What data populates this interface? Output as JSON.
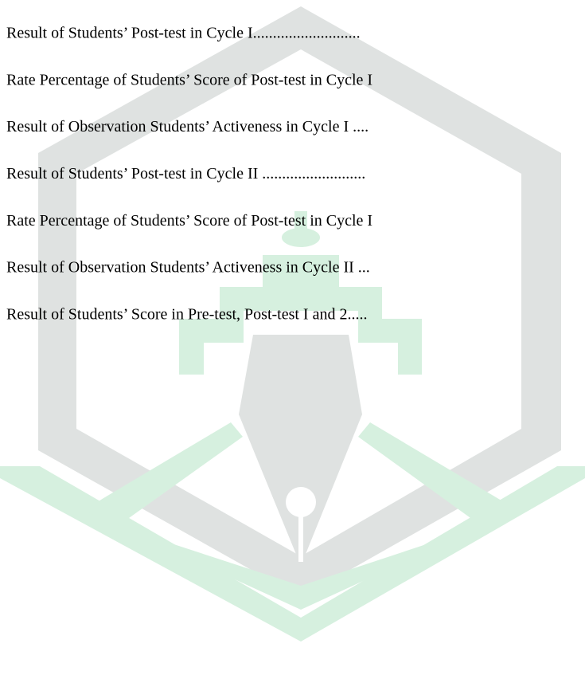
{
  "lines": [
    "Result of Students’ Post-test in Cycle I...........................",
    "Rate Percentage of Students’ Score of Post-test in Cycle I",
    "Result of Observation Students’ Activeness in Cycle I ....",
    "Result of Students’ Post-test in Cycle II ..........................",
    "Rate Percentage of Students’ Score of Post-test in Cycle I",
    "Result of Observation Students’ Activeness in Cycle II ...",
    "Result of Students’ Score in Pre-test, Post-test I and 2....."
  ]
}
